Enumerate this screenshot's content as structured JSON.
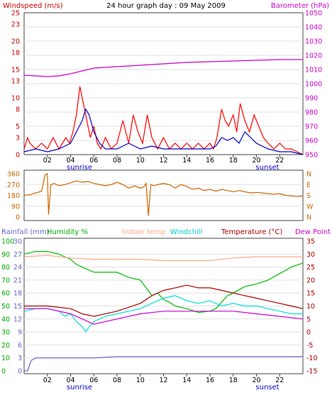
{
  "title": "24 hour graph day : 09 May 2009",
  "chart_data": [
    {
      "type": "line",
      "panel": "wind-baro",
      "left_axis": {
        "label": "Windspeed (m/s)",
        "ticks": [
          0,
          3,
          5,
          8,
          10,
          13,
          15,
          18,
          20,
          23,
          25
        ],
        "range": [
          0,
          25
        ]
      },
      "right_axis": {
        "label": "Barometer (hPa)",
        "ticks": [
          950,
          960,
          970,
          980,
          990,
          1000,
          1010,
          1020,
          1030,
          1040,
          1050
        ],
        "range": [
          950,
          1050
        ]
      },
      "x_ticks": [
        "02",
        "04",
        "06",
        "08",
        "10",
        "12",
        "14",
        "16",
        "18",
        "20",
        "22"
      ],
      "annotations": [
        "sunrise",
        "sunset"
      ],
      "series": [
        {
          "color": "#ff0000",
          "x": [
            0,
            0.3,
            0.5,
            1,
            1.5,
            2,
            2.5,
            3,
            3.3,
            3.6,
            3.9,
            4.2,
            4.5,
            4.8,
            5.1,
            5.4,
            5.7,
            6,
            6.3,
            6.6,
            7,
            7.5,
            8,
            8.5,
            9,
            9.4,
            9.8,
            10.2,
            10.6,
            11,
            11.5,
            12,
            12.5,
            13,
            13.5,
            14,
            14.5,
            15,
            15.5,
            16,
            16.3,
            16.6,
            17,
            17.3,
            17.6,
            18,
            18.3,
            18.6,
            19,
            19.4,
            19.8,
            20.2,
            20.6,
            21,
            21.5,
            22,
            22.5,
            23,
            23.5,
            24
          ],
          "y": [
            1,
            3,
            2,
            1,
            2,
            1,
            3,
            1,
            2,
            3,
            2,
            4,
            7,
            12,
            9,
            6,
            3,
            5,
            2,
            1,
            3,
            1,
            2,
            6,
            2,
            7,
            4,
            2,
            7,
            3,
            1,
            3,
            1,
            2,
            1,
            2,
            1,
            2,
            1,
            2,
            1,
            3,
            8,
            6,
            5,
            7,
            4,
            9,
            6,
            4,
            7,
            5,
            3,
            2,
            1,
            2,
            1,
            1,
            0.5,
            0
          ]
        },
        {
          "color": "#0000cc",
          "x": [
            0,
            1,
            2,
            3,
            3.5,
            4,
            4.5,
            5,
            5.3,
            5.6,
            6,
            6.5,
            7,
            8,
            9,
            10,
            11,
            12,
            13,
            14,
            15,
            16,
            16.5,
            17,
            17.5,
            18,
            18.5,
            19,
            19.5,
            20,
            21,
            22,
            23,
            24
          ],
          "y": [
            0.5,
            1,
            0.5,
            1,
            1.5,
            2,
            4,
            6,
            8,
            7,
            4,
            2,
            1,
            1,
            2,
            1,
            1.5,
            1,
            1,
            1,
            1,
            1,
            1.5,
            3,
            2.5,
            3,
            2,
            4,
            3,
            2,
            1,
            0.5,
            0.5,
            0
          ]
        },
        {
          "color": "#cc00cc",
          "axis": "right",
          "x": [
            0,
            2,
            3,
            4,
            5,
            6,
            8,
            10,
            12,
            14,
            16,
            18,
            20,
            22,
            24
          ],
          "y": [
            1006,
            1005,
            1005.5,
            1007,
            1009,
            1011,
            1012,
            1013,
            1014,
            1015,
            1015.5,
            1016,
            1016.5,
            1017,
            1017
          ]
        }
      ]
    },
    {
      "type": "line",
      "panel": "wind-direction",
      "left_axis": {
        "ticks": [
          0,
          90,
          180,
          270,
          360
        ],
        "range": [
          0,
          360
        ]
      },
      "right_axis": {
        "ticks": [
          "N",
          "W",
          "S",
          "E",
          "N"
        ]
      },
      "series": [
        {
          "color": "#cc6600",
          "x": [
            0,
            0.5,
            1,
            1.5,
            1.8,
            2,
            2.1,
            2.3,
            2.6,
            3,
            3.5,
            4,
            4.5,
            5,
            5.5,
            6,
            6.5,
            7,
            7.5,
            8,
            8.5,
            9,
            9.5,
            10,
            10.3,
            10.5,
            10.7,
            10.9,
            11.2,
            11.5,
            12,
            12.5,
            13,
            13.5,
            14,
            14.5,
            15,
            15.5,
            16,
            16.5,
            17,
            17.5,
            18,
            18.5,
            19,
            19.5,
            20,
            20.5,
            21,
            21.5,
            22,
            22.5,
            23,
            23.5,
            24
          ],
          "y": [
            180,
            185,
            200,
            215,
            350,
            360,
            20,
            270,
            280,
            260,
            270,
            285,
            300,
            290,
            295,
            280,
            270,
            260,
            270,
            290,
            270,
            240,
            260,
            240,
            250,
            280,
            10,
            270,
            260,
            270,
            280,
            270,
            240,
            270,
            255,
            230,
            240,
            220,
            230,
            215,
            230,
            220,
            210,
            220,
            210,
            200,
            205,
            200,
            195,
            190,
            195,
            180,
            175,
            170,
            175
          ]
        }
      ]
    },
    {
      "type": "line",
      "panel": "temp-humidity-rain",
      "legend": [
        "Rainfall (mm)",
        "Humidity %",
        "Indoor temp",
        "Windchill",
        "Temperature (°C)",
        "Dew Point"
      ],
      "rain_axis": {
        "ticks": [
          0,
          3,
          6,
          9,
          12,
          15,
          18,
          21,
          24,
          27,
          30
        ]
      },
      "humidity_axis": {
        "ticks": [
          0,
          10,
          20,
          30,
          40,
          50,
          60,
          70,
          80,
          90,
          100
        ],
        "range": [
          0,
          100
        ]
      },
      "temp_axis": {
        "ticks": [
          -15,
          -10,
          -5,
          0,
          5,
          10,
          15,
          20,
          25,
          30,
          35
        ],
        "range": [
          -15,
          35
        ]
      },
      "x_ticks": [
        "02",
        "04",
        "06",
        "08",
        "10",
        "12",
        "14",
        "16",
        "18",
        "20",
        "22"
      ],
      "annotations": [
        "sunrise",
        "sunset"
      ],
      "series": [
        {
          "name": "Humidity %",
          "color": "#00bb00",
          "axis": "humidity",
          "x": [
            0,
            1,
            2,
            3,
            3.5,
            4,
            4.5,
            5,
            6,
            7,
            8,
            8.5,
            9,
            10,
            10.5,
            11,
            11.5,
            12,
            12.5,
            13,
            14,
            15,
            16,
            16.5,
            17,
            17.5,
            18,
            19,
            20,
            21,
            22,
            23,
            24
          ],
          "y": [
            90,
            92,
            92,
            90,
            88,
            86,
            82,
            80,
            76,
            76,
            76,
            74,
            72,
            70,
            64,
            58,
            60,
            55,
            53,
            50,
            48,
            45,
            46,
            48,
            53,
            58,
            60,
            65,
            67,
            70,
            75,
            80,
            83
          ]
        },
        {
          "name": "Indoor temp",
          "color": "#ffaa88",
          "axis": "temp",
          "x": [
            0,
            2,
            4,
            6,
            8,
            10,
            12,
            14,
            16,
            18,
            20,
            22,
            24
          ],
          "y": [
            29,
            29.5,
            28.5,
            28,
            28,
            28,
            27.5,
            27.5,
            27.5,
            28.5,
            29,
            29,
            29
          ]
        },
        {
          "name": "Windchill",
          "color": "#00dddd",
          "axis": "temp",
          "x": [
            0,
            1,
            2,
            3,
            3.5,
            4,
            4.5,
            5,
            5.3,
            5.6,
            6,
            7,
            8,
            9,
            10,
            11,
            12,
            13,
            14,
            15,
            16,
            17,
            18,
            19,
            20,
            21,
            22,
            23,
            24
          ],
          "y": [
            8,
            9,
            9,
            8,
            6,
            7,
            4,
            2,
            0,
            2,
            4,
            6,
            7,
            8,
            9,
            11,
            13,
            14,
            12,
            11,
            12,
            10,
            11,
            10,
            10,
            9,
            8,
            7,
            7
          ]
        },
        {
          "name": "Temperature (°C)",
          "color": "#aa0000",
          "axis": "temp",
          "x": [
            0,
            2,
            4,
            5,
            6,
            8,
            10,
            11,
            12,
            13,
            14,
            15,
            16,
            17,
            18,
            19,
            20,
            22,
            23,
            24
          ],
          "y": [
            10,
            10,
            9,
            7,
            6,
            8,
            11,
            14,
            16,
            17,
            18,
            17,
            17,
            16,
            15,
            14,
            13,
            11,
            10,
            9
          ]
        },
        {
          "name": "Dew Point",
          "color": "#cc00cc",
          "axis": "temp",
          "x": [
            0,
            2,
            4,
            5,
            6,
            8,
            10,
            12,
            14,
            16,
            18,
            20,
            22,
            24
          ],
          "y": [
            9,
            9,
            7,
            5,
            3,
            5,
            7,
            8,
            8,
            8,
            8,
            7,
            6,
            5
          ]
        },
        {
          "name": "Rainfall (mm)",
          "color": "#6666cc",
          "axis": "rain",
          "x": [
            0,
            0.3,
            0.6,
            1,
            2,
            4,
            6,
            8,
            10,
            12,
            14,
            16,
            18,
            20,
            22,
            24
          ],
          "y": [
            0,
            0,
            2.4,
            3,
            3,
            3,
            3,
            3.3,
            3.3,
            3.3,
            3.3,
            3.3,
            3.3,
            3.3,
            3.3,
            3.3
          ]
        }
      ]
    }
  ]
}
